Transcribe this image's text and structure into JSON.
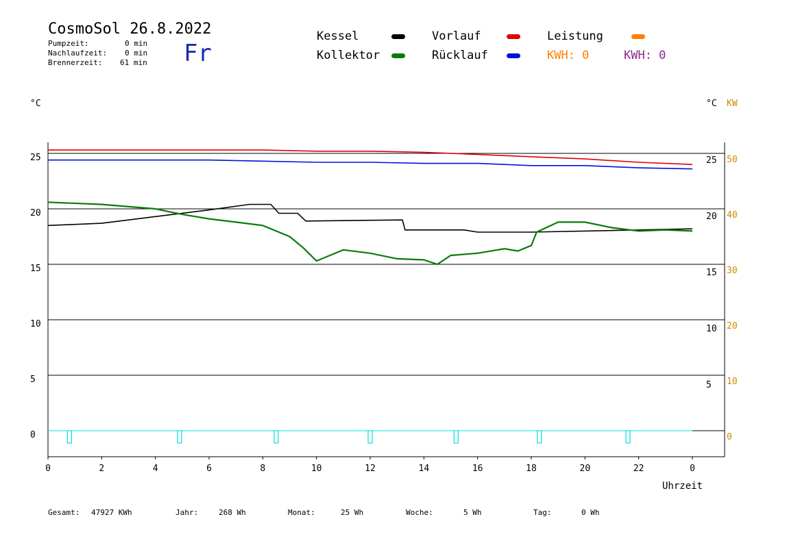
{
  "header": {
    "title": "CosmoSol 26.8.2022",
    "weekday": "Fr",
    "stats": [
      {
        "label": "Pumpzeit:",
        "value": "0 min"
      },
      {
        "label": "Nachlaufzeit:",
        "value": "0 min"
      },
      {
        "label": "Brennerzeit:",
        "value": "61 min"
      }
    ]
  },
  "legend": {
    "kessel": "Kessel",
    "kollektor": "Kollektor",
    "vorlauf": "Vorlauf",
    "ruecklauf": "Rücklauf",
    "leistung": "Leistung",
    "kwh_orange": "KWH: 0",
    "kwh_purple": "KWH: 0"
  },
  "colors": {
    "kessel": "#000000",
    "kollektor": "#0a7a0a",
    "vorlauf": "#e00000",
    "ruecklauf": "#0010e0",
    "leistung": "#ff8000",
    "kwh_purple": "#8b2a8b",
    "pump": "#00e0e0",
    "weekday": "#1a2bb0"
  },
  "axes": {
    "left_unit": "°C",
    "right_unit_c": "°C",
    "right_unit_kw": "KW",
    "xlabel": "Uhrzeit"
  },
  "footer": {
    "gesamt_label": "Gesamt:",
    "gesamt_value": "47927 KWh",
    "jahr_label": "Jahr:",
    "jahr_value": "268 Wh",
    "monat_label": "Monat:",
    "monat_value": "25 Wh",
    "woche_label": "Woche:",
    "woche_value": "5 Wh",
    "tag_label": "Tag:",
    "tag_value": "0 Wh"
  },
  "chart_data": {
    "type": "line",
    "xlabel": "Uhrzeit",
    "ylabel": "°C",
    "xlim": [
      0,
      24
    ],
    "ylim": [
      -2,
      27
    ],
    "y2lim": [
      -4,
      54
    ],
    "grid": true,
    "x_ticks": [
      "0",
      "2",
      "4",
      "6",
      "8",
      "10",
      "12",
      "14",
      "16",
      "18",
      "20",
      "22",
      "0"
    ],
    "y_left_ticks": [
      0,
      5,
      10,
      15,
      20,
      25
    ],
    "y_right_c_ticks": [
      5,
      10,
      15,
      20,
      25
    ],
    "y_right_kw_ticks": [
      0,
      10,
      20,
      30,
      40,
      50
    ],
    "series": [
      {
        "name": "Vorlauf",
        "x": [
          0,
          2,
          4,
          6,
          8,
          10,
          12,
          14,
          16,
          18,
          20,
          22,
          24
        ],
        "y": [
          25.3,
          25.3,
          25.3,
          25.3,
          25.3,
          25.2,
          25.2,
          25.1,
          24.9,
          24.7,
          24.5,
          24.2,
          24.0
        ]
      },
      {
        "name": "Rücklauf",
        "x": [
          0,
          2,
          4,
          6,
          8,
          10,
          12,
          14,
          16,
          18,
          20,
          22,
          24
        ],
        "y": [
          24.4,
          24.4,
          24.4,
          24.4,
          24.3,
          24.2,
          24.2,
          24.1,
          24.1,
          23.9,
          23.9,
          23.7,
          23.6
        ]
      },
      {
        "name": "Kessel",
        "x": [
          0,
          2,
          4,
          6,
          7.5,
          8.3,
          8.6,
          9.3,
          9.6,
          13.2,
          13.3,
          15.5,
          16,
          18,
          24
        ],
        "y": [
          18.5,
          18.7,
          19.3,
          19.9,
          20.4,
          20.4,
          19.6,
          19.6,
          18.9,
          19.0,
          18.1,
          18.1,
          17.9,
          17.9,
          18.2
        ]
      },
      {
        "name": "Kollektor",
        "x": [
          0,
          2,
          4,
          4.6,
          5,
          6,
          7,
          8,
          9,
          9.5,
          10,
          11,
          12,
          13,
          14,
          14.5,
          15,
          16,
          17,
          17.5,
          18,
          18.2,
          19,
          20,
          21,
          22,
          23,
          24
        ],
        "y": [
          20.6,
          20.4,
          20.0,
          19.7,
          19.5,
          19.1,
          18.8,
          18.5,
          17.5,
          16.5,
          15.3,
          16.3,
          16.0,
          15.5,
          15.4,
          15.0,
          15.8,
          16.0,
          16.4,
          16.2,
          16.7,
          17.9,
          18.8,
          18.8,
          18.3,
          18.0,
          18.1,
          18.0
        ]
      },
      {
        "name": "Leistung",
        "x": [
          0,
          24
        ],
        "y": [
          0,
          0
        ]
      }
    ],
    "pump_markers_x": [
      0.8,
      4.9,
      8.5,
      12.0,
      15.2,
      18.3,
      21.6
    ]
  }
}
